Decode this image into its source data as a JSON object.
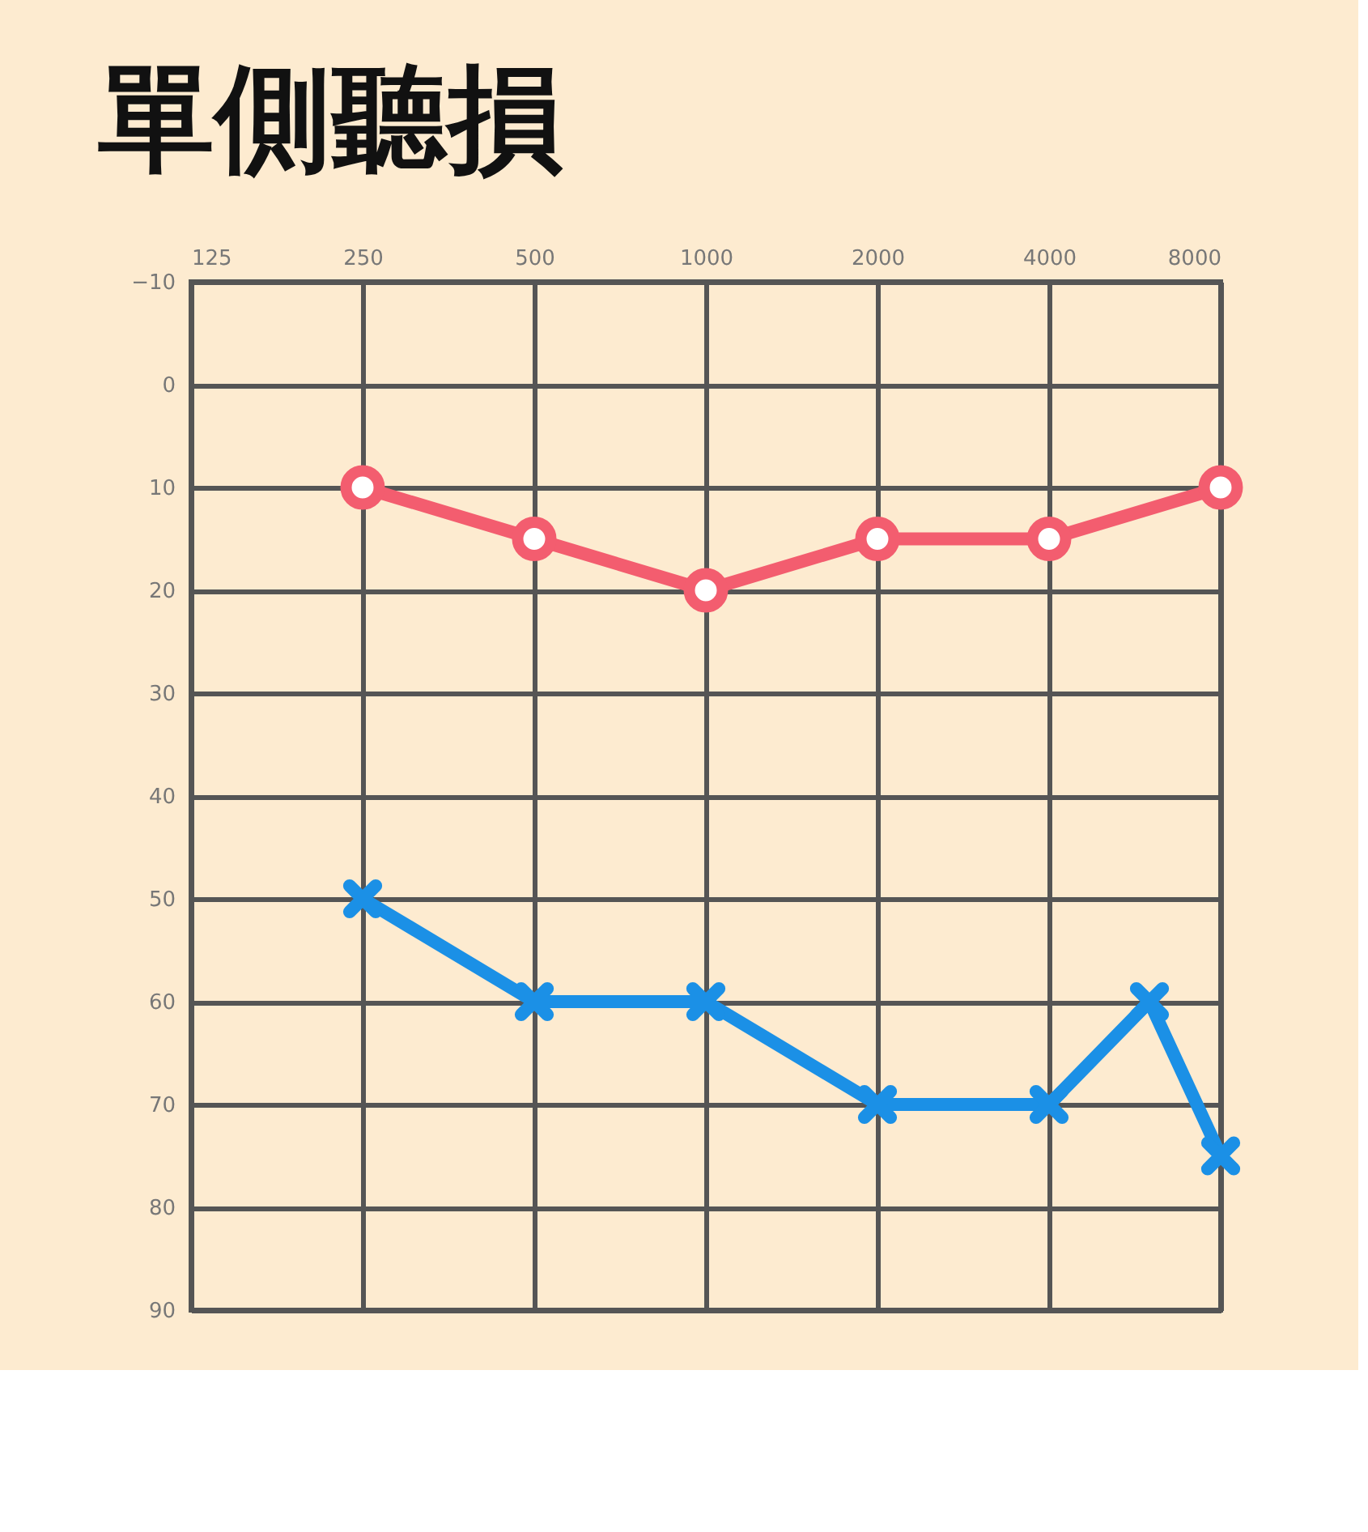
{
  "chart_data": {
    "type": "line",
    "title": "單側聽損",
    "x": [
      250,
      500,
      1000,
      2000,
      4000,
      8000
    ],
    "series": [
      {
        "color": "#f35d6f",
        "marker": "circle",
        "values": [
          10,
          15,
          20,
          15,
          15,
          10
        ]
      },
      {
        "color": "#1b90e6",
        "marker": "cross",
        "x": [
          250,
          500,
          1000,
          2000,
          4000,
          6000,
          8000
        ],
        "values": [
          50,
          60,
          60,
          70,
          70,
          60,
          75
        ]
      }
    ],
    "log": "x",
    "xlim": [
      125,
      8000
    ],
    "xticks": [
      125,
      250,
      500,
      1000,
      2000,
      4000,
      8000
    ],
    "ylim": [
      90,
      -10
    ],
    "yticks": [
      -10,
      0,
      10,
      20,
      30,
      40,
      50,
      60,
      70,
      80,
      90
    ],
    "grid": true,
    "line_style": "solid"
  }
}
